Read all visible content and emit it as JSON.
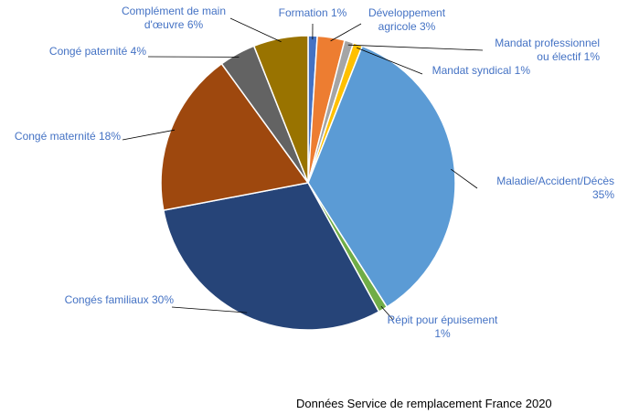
{
  "chart_data": {
    "type": "pie",
    "slices": [
      {
        "name": "Formation",
        "value": 1,
        "label": [
          "Formation 1%"
        ],
        "color": "#4472c4"
      },
      {
        "name": "Développement agricole",
        "value": 3,
        "label": [
          "Développement",
          "agricole 3%"
        ],
        "color": "#ed7d31"
      },
      {
        "name": "Mandat professionnel ou électif",
        "value": 1,
        "label": [
          "Mandat professionnel",
          "ou électif 1%"
        ],
        "color": "#a5a5a5"
      },
      {
        "name": "Mandat syndical",
        "value": 1,
        "label": [
          "Mandat syndical 1%"
        ],
        "color": "#ffc000"
      },
      {
        "name": "Maladie/Accident/Décès",
        "value": 35,
        "label": [
          "Maladie/Accident/Décès",
          "35%"
        ],
        "color": "#5b9bd5"
      },
      {
        "name": "Répit pour épuisement",
        "value": 1,
        "label": [
          "Répit pour épuisement",
          "1%"
        ],
        "color": "#70ad47"
      },
      {
        "name": "Congés familiaux",
        "value": 30,
        "label": [
          "Congés familiaux 30%"
        ],
        "color": "#264478"
      },
      {
        "name": "Congé maternité",
        "value": 18,
        "label": [
          "Congé maternité 18%"
        ],
        "color": "#9e480e"
      },
      {
        "name": "Congé paternité",
        "value": 4,
        "label": [
          "Congé paternité 4%"
        ],
        "color": "#636363"
      },
      {
        "name": "Complément de main d'œuvre",
        "value": 6,
        "label": [
          "Complément de main",
          "d'œuvre 6%"
        ],
        "color": "#997300"
      }
    ]
  },
  "source_note": "Données Service de remplacement France 2020"
}
